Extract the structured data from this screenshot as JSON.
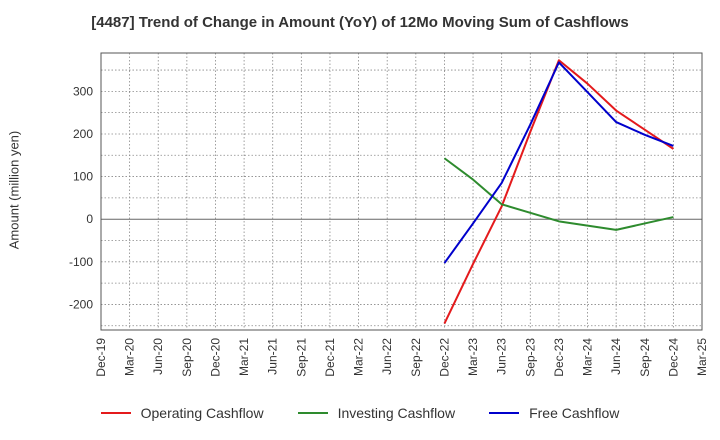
{
  "chart_data": {
    "type": "line",
    "title": "[4487]  Trend of Change in Amount (YoY) of 12Mo Moving Sum of Cashflows",
    "xlabel": "",
    "ylabel": "Amount (million yen)",
    "categories": [
      "Dec-19",
      "Mar-20",
      "Jun-20",
      "Sep-20",
      "Dec-20",
      "Mar-21",
      "Jun-21",
      "Sep-21",
      "Dec-21",
      "Mar-22",
      "Jun-22",
      "Sep-22",
      "Dec-22",
      "Mar-23",
      "Jun-23",
      "Sep-23",
      "Dec-23",
      "Mar-24",
      "Jun-24",
      "Sep-24",
      "Dec-24",
      "Mar-25"
    ],
    "ylim": [
      -260,
      390
    ],
    "yticks": [
      -200,
      -100,
      0,
      100,
      200,
      300
    ],
    "yticklabels": [
      "-200",
      "-100",
      "0",
      "100",
      "200",
      "300"
    ],
    "grid": true,
    "legend_position": "bottom",
    "series": [
      {
        "name": "Operating Cashflow",
        "color": "#e41a1c",
        "values": [
          null,
          null,
          null,
          null,
          null,
          null,
          null,
          null,
          null,
          null,
          null,
          null,
          -245,
          -105,
          30,
          205,
          373,
          318,
          255,
          210,
          165,
          null
        ]
      },
      {
        "name": "Investing Cashflow",
        "color": "#2e8b2e",
        "values": [
          null,
          null,
          null,
          null,
          null,
          null,
          null,
          null,
          null,
          null,
          null,
          null,
          143,
          93,
          35,
          15,
          -5,
          -15,
          -25,
          -10,
          5,
          null
        ]
      },
      {
        "name": "Free Cashflow",
        "color": "#0000cc",
        "values": [
          null,
          null,
          null,
          null,
          null,
          null,
          null,
          null,
          null,
          null,
          null,
          null,
          -103,
          -10,
          85,
          222,
          368,
          298,
          228,
          198,
          172,
          null
        ]
      }
    ]
  }
}
